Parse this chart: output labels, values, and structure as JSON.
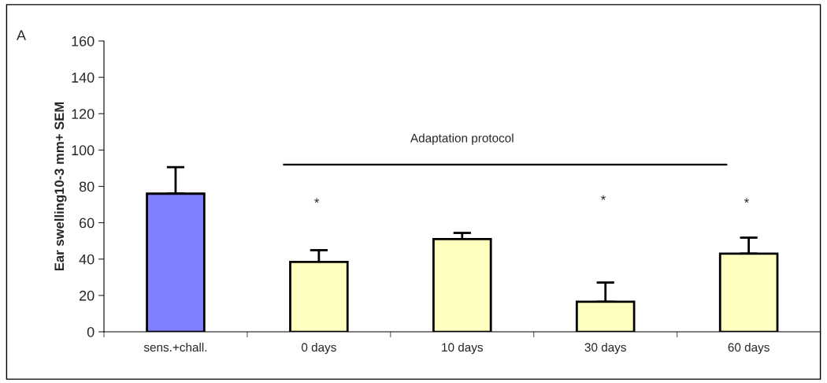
{
  "chart_data": {
    "type": "bar",
    "ylabel": "Ear swelling10-3 mm+ SEM",
    "categories": [
      "sens.+chall.",
      "0 days",
      "10 days",
      "30 days",
      "60 days"
    ],
    "values": [
      76,
      38.4,
      51,
      16.5,
      43
    ],
    "colors": [
      "#8080ff",
      "#ffffc0",
      "#ffffc0",
      "#ffffc0",
      "#ffffc0"
    ],
    "errors": [
      [
        76,
        90.6
      ],
      [
        38.4,
        44.9
      ],
      [
        51,
        54.4
      ],
      [
        16.5,
        27.1
      ],
      [
        43,
        51.8
      ]
    ],
    "ylim": [
      0,
      160
    ],
    "yticks": [
      0,
      20,
      40,
      60,
      80,
      100,
      120,
      140,
      160
    ],
    "grid": false,
    "legend": false,
    "ref_lines": [
      {
        "axis": "y",
        "value": 92,
        "label": "Adaptation protocol"
      }
    ],
    "annotations": [
      "A",
      "*",
      "*",
      "*"
    ]
  }
}
